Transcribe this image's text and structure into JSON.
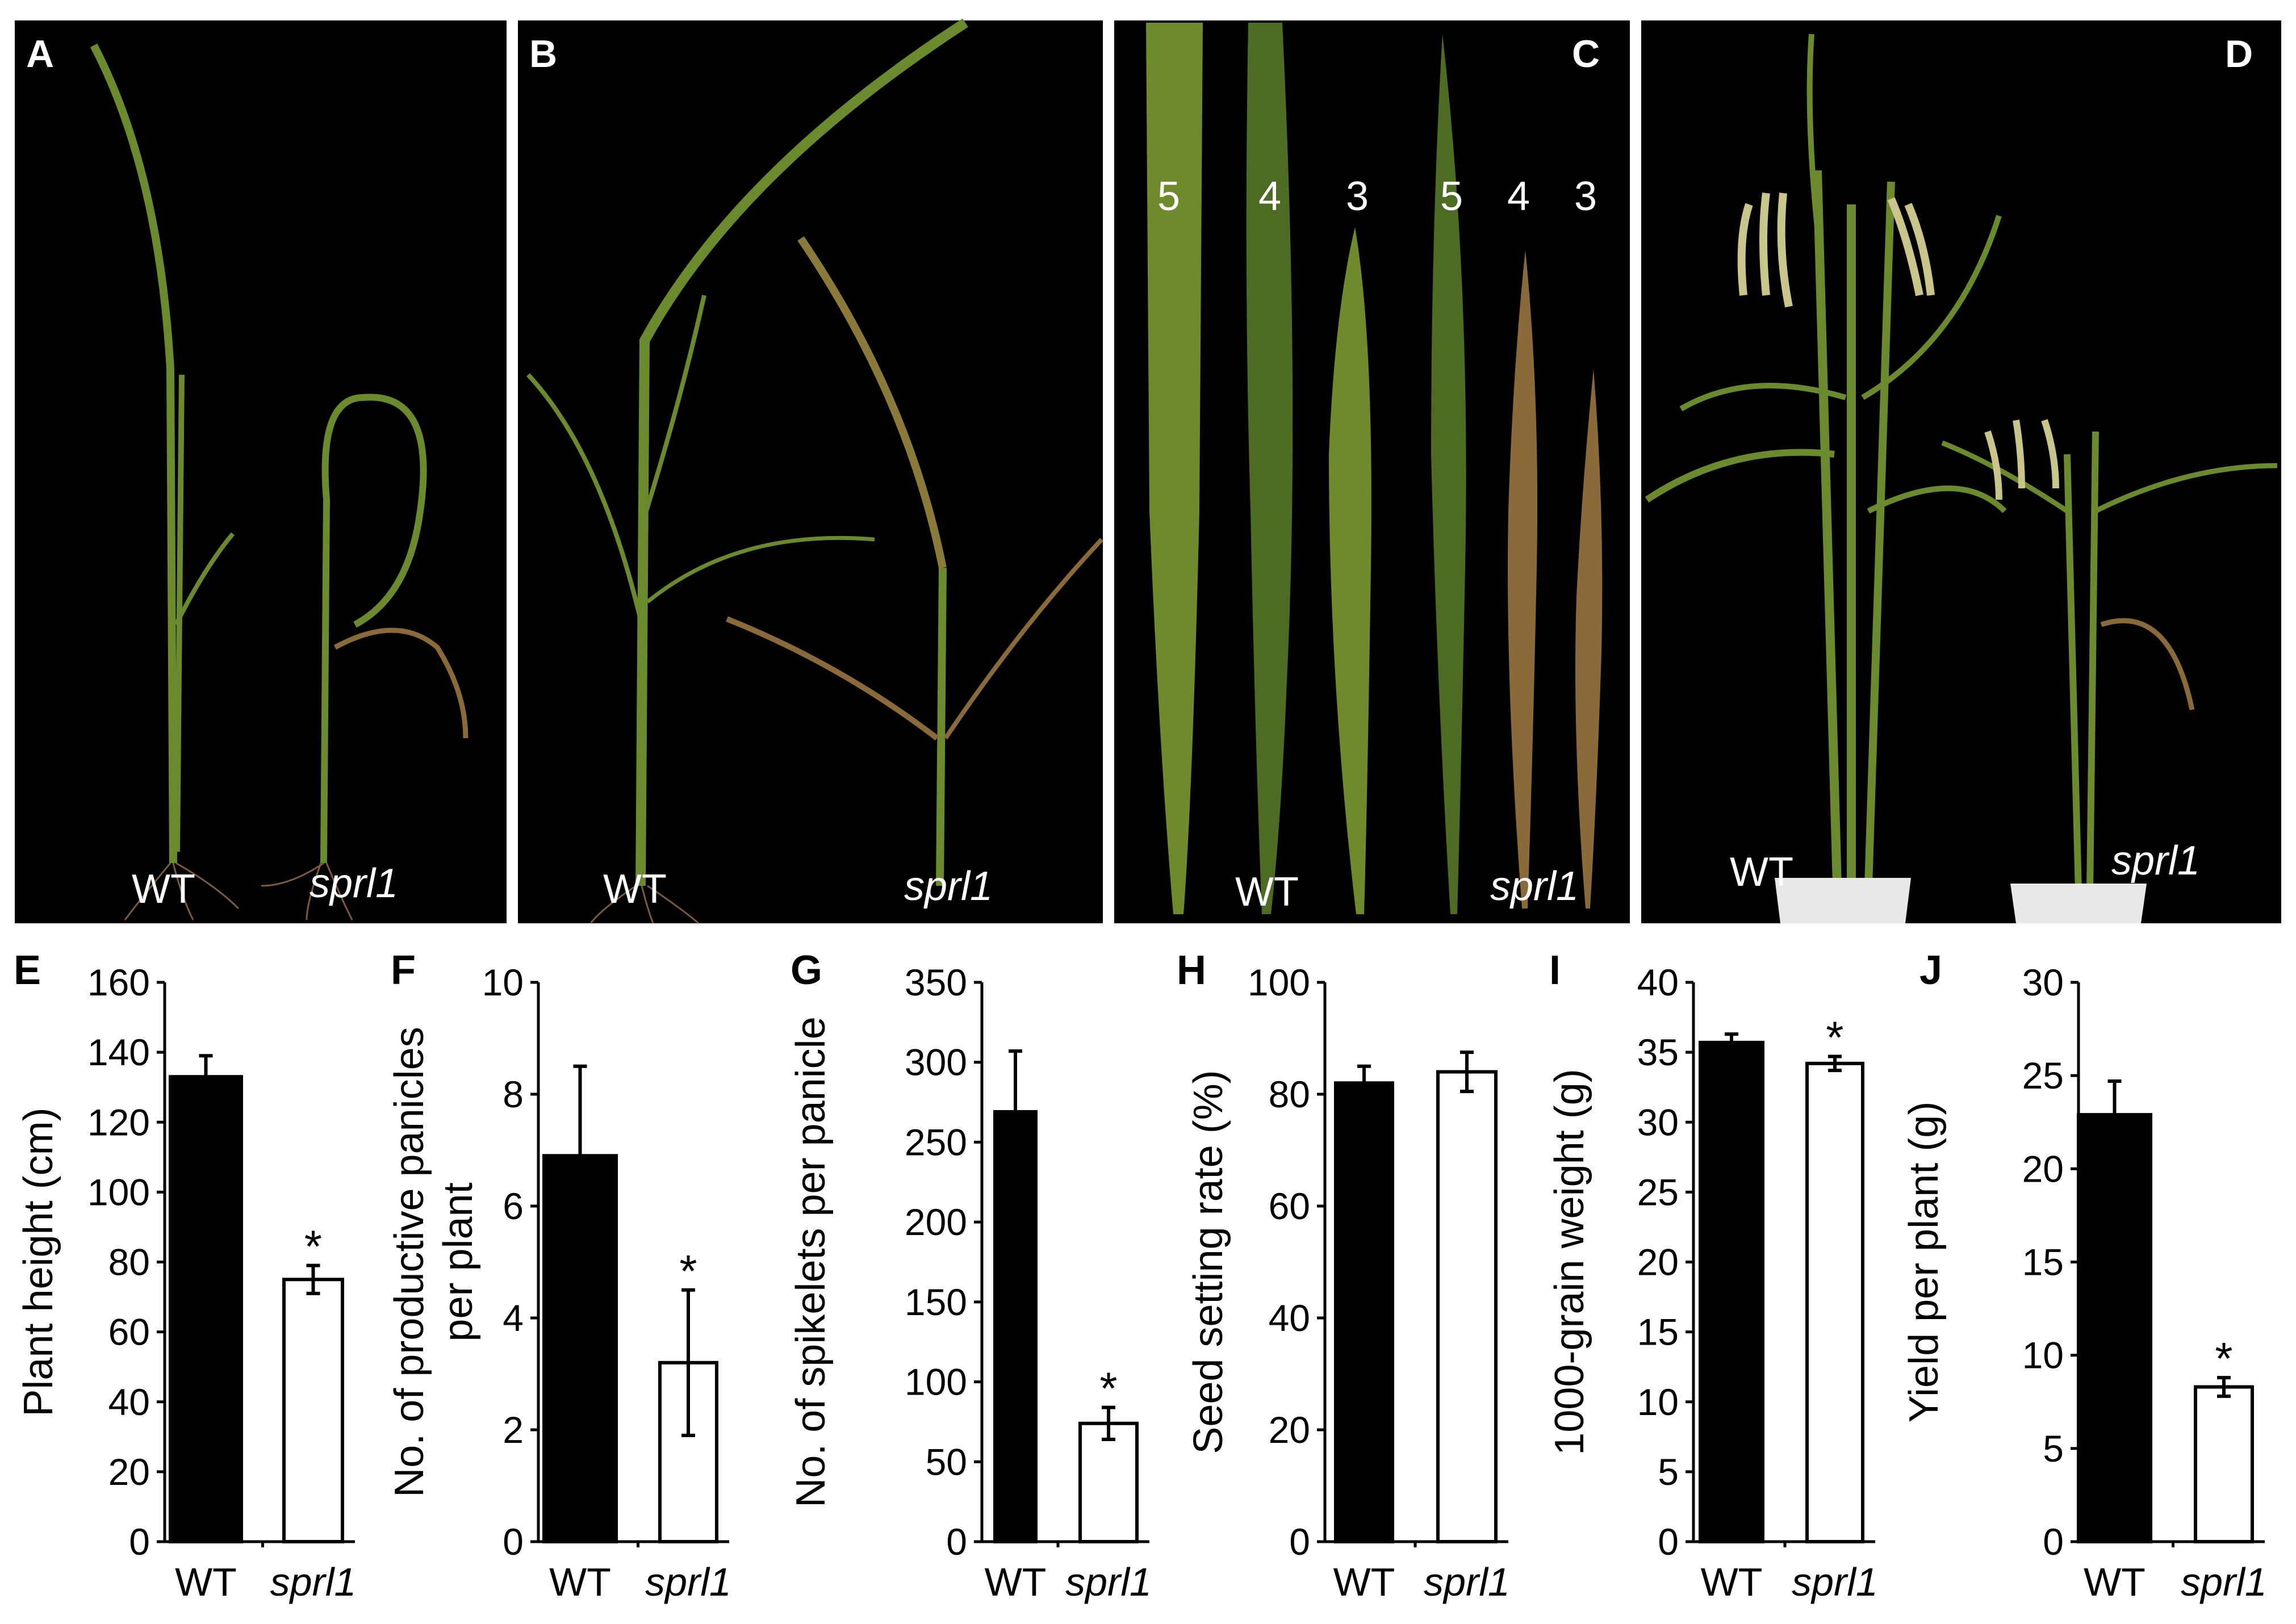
{
  "photo_panels": [
    {
      "letter": "A",
      "labels": [
        "WT",
        "sprl1"
      ]
    },
    {
      "letter": "B",
      "labels": [
        "WT",
        "sprl1"
      ]
    },
    {
      "letter": "C",
      "labels": [
        "WT",
        "sprl1"
      ],
      "leaf_numbers": [
        "5",
        "4",
        "3",
        "5",
        "4",
        "3"
      ]
    },
    {
      "letter": "D",
      "labels": [
        "WT",
        "sprl1"
      ]
    }
  ],
  "colors": {
    "wt_bar": "#000000",
    "sprl1_bar": "#ffffff",
    "photo_background": "#000000"
  },
  "chart_data": [
    {
      "type": "bar",
      "panel": "E",
      "categories": [
        "WT",
        "sprl1"
      ],
      "values": [
        133,
        75
      ],
      "errors": [
        6,
        4
      ],
      "significance": [
        "",
        "*"
      ],
      "ylabel": "Plant height (cm)",
      "ylim": [
        0,
        160
      ],
      "yticks": [
        0,
        20,
        40,
        60,
        80,
        100,
        120,
        140,
        160
      ]
    },
    {
      "type": "bar",
      "panel": "F",
      "categories": [
        "WT",
        "sprl1"
      ],
      "values": [
        6.9,
        3.2
      ],
      "errors": [
        1.6,
        1.3
      ],
      "significance": [
        "",
        "*"
      ],
      "ylabel": "No. of productive panicles per plant",
      "ylabel_lines": [
        "No. of productive panicles",
        "per plant"
      ],
      "ylim": [
        0,
        10
      ],
      "yticks": [
        0,
        2,
        4,
        6,
        8,
        10
      ]
    },
    {
      "type": "bar",
      "panel": "G",
      "categories": [
        "WT",
        "sprl1"
      ],
      "values": [
        269,
        74
      ],
      "errors": [
        38,
        10
      ],
      "significance": [
        "",
        "*"
      ],
      "ylabel": "No. of spikelets per panicle",
      "ylim": [
        0,
        350
      ],
      "yticks": [
        0,
        50,
        100,
        150,
        200,
        250,
        300,
        350
      ]
    },
    {
      "type": "bar",
      "panel": "H",
      "categories": [
        "WT",
        "sprl1"
      ],
      "values": [
        82,
        84
      ],
      "errors": [
        3,
        3.5
      ],
      "significance": [
        "",
        ""
      ],
      "ylabel": "Seed setting rate (%)",
      "ylim": [
        0,
        100
      ],
      "yticks": [
        0,
        20,
        40,
        60,
        80,
        100
      ]
    },
    {
      "type": "bar",
      "panel": "I",
      "categories": [
        "WT",
        "sprl1"
      ],
      "values": [
        35.7,
        34.2
      ],
      "errors": [
        0.6,
        0.5
      ],
      "significance": [
        "",
        "*"
      ],
      "ylabel": "1000-grain weight (g)",
      "ylim": [
        0,
        40
      ],
      "yticks": [
        0,
        5,
        10,
        15,
        20,
        25,
        30,
        35,
        40
      ]
    },
    {
      "type": "bar",
      "panel": "J",
      "categories": [
        "WT",
        "sprl1"
      ],
      "values": [
        22.9,
        8.3
      ],
      "errors": [
        1.8,
        0.5
      ],
      "significance": [
        "",
        "*"
      ],
      "ylabel": "Yield per plant (g)",
      "ylim": [
        0,
        30
      ],
      "yticks": [
        0,
        5,
        10,
        15,
        20,
        25,
        30
      ]
    }
  ]
}
